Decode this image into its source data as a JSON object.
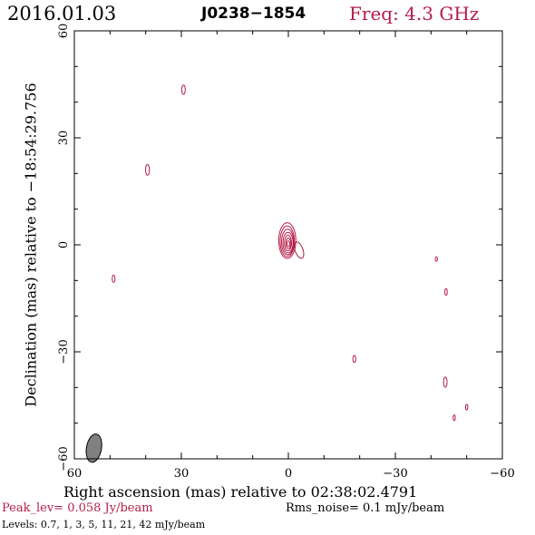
{
  "header": {
    "date": "2016.01.03",
    "source": "J0238−1854",
    "frequency": "Freq: 4.3 GHz"
  },
  "footer": {
    "peak": "Peak_lev=  0.058 Jy/beam",
    "rms": "Rms_noise=   0.1 mJy/beam",
    "levels": "Levels: 0.7,    1,    3,    5,   11,   21,   42 mJy/beam"
  },
  "colors": {
    "contour": "#b41c48",
    "beam": "#808080",
    "frame": "#000000"
  },
  "chart_data": {
    "type": "contour",
    "xlabel": "Right ascension (mas) relative to 02:38:02.4791",
    "ylabel": "Declination (mas) relative to −18:54:29.756",
    "xlim": [
      60,
      -60
    ],
    "ylim": [
      -60,
      60
    ],
    "xticks": [
      60,
      30,
      0,
      -30,
      -60
    ],
    "yticks": [
      -60,
      -30,
      0,
      30,
      60
    ],
    "xtick_labels": [
      "60",
      "30",
      "0",
      "−30",
      "−60"
    ],
    "ytick_labels": [
      "−60",
      "−30",
      "0",
      "30",
      "60"
    ],
    "levels_mJy": [
      0.7,
      1,
      3,
      5,
      11,
      21,
      42
    ],
    "beam": {
      "x": 54.5,
      "y": -57,
      "major": 4,
      "minor": 2.1,
      "pa_deg": 10
    },
    "core": [
      {
        "x": 0.3,
        "y": 1.2,
        "a": 2.4,
        "b": 5.0
      },
      {
        "x": 0.3,
        "y": 1.0,
        "a": 2.0,
        "b": 4.3
      },
      {
        "x": 0.2,
        "y": 0.8,
        "a": 1.7,
        "b": 3.6
      },
      {
        "x": 0.1,
        "y": 0.6,
        "a": 1.4,
        "b": 2.9
      },
      {
        "x": 0.1,
        "y": 0.5,
        "a": 1.0,
        "b": 2.2
      },
      {
        "x": 0.0,
        "y": 0.4,
        "a": 0.7,
        "b": 1.5
      },
      {
        "x": 0.0,
        "y": 0.3,
        "a": 0.4,
        "b": 0.8
      }
    ],
    "jet": {
      "x": -3.0,
      "y": -1.5,
      "a": 1.1,
      "b": 2.4,
      "pa_deg": 20
    },
    "noise_contours": [
      {
        "x": 29.4,
        "y": 43.5,
        "a": 0.5,
        "b": 1.3
      },
      {
        "x": 39.5,
        "y": 21.0,
        "a": 0.55,
        "b": 1.5
      },
      {
        "x": 49.0,
        "y": -9.5,
        "a": 0.4,
        "b": 1.0
      },
      {
        "x": -18.5,
        "y": -32.0,
        "a": 0.4,
        "b": 1.0
      },
      {
        "x": -41.5,
        "y": -4.0,
        "a": 0.3,
        "b": 0.6
      },
      {
        "x": -44.2,
        "y": -13.2,
        "a": 0.35,
        "b": 0.9
      },
      {
        "x": -44.0,
        "y": -38.5,
        "a": 0.5,
        "b": 1.4
      },
      {
        "x": -46.5,
        "y": -48.5,
        "a": 0.3,
        "b": 0.8
      },
      {
        "x": -50.0,
        "y": -45.5,
        "a": 0.3,
        "b": 0.8
      }
    ]
  }
}
